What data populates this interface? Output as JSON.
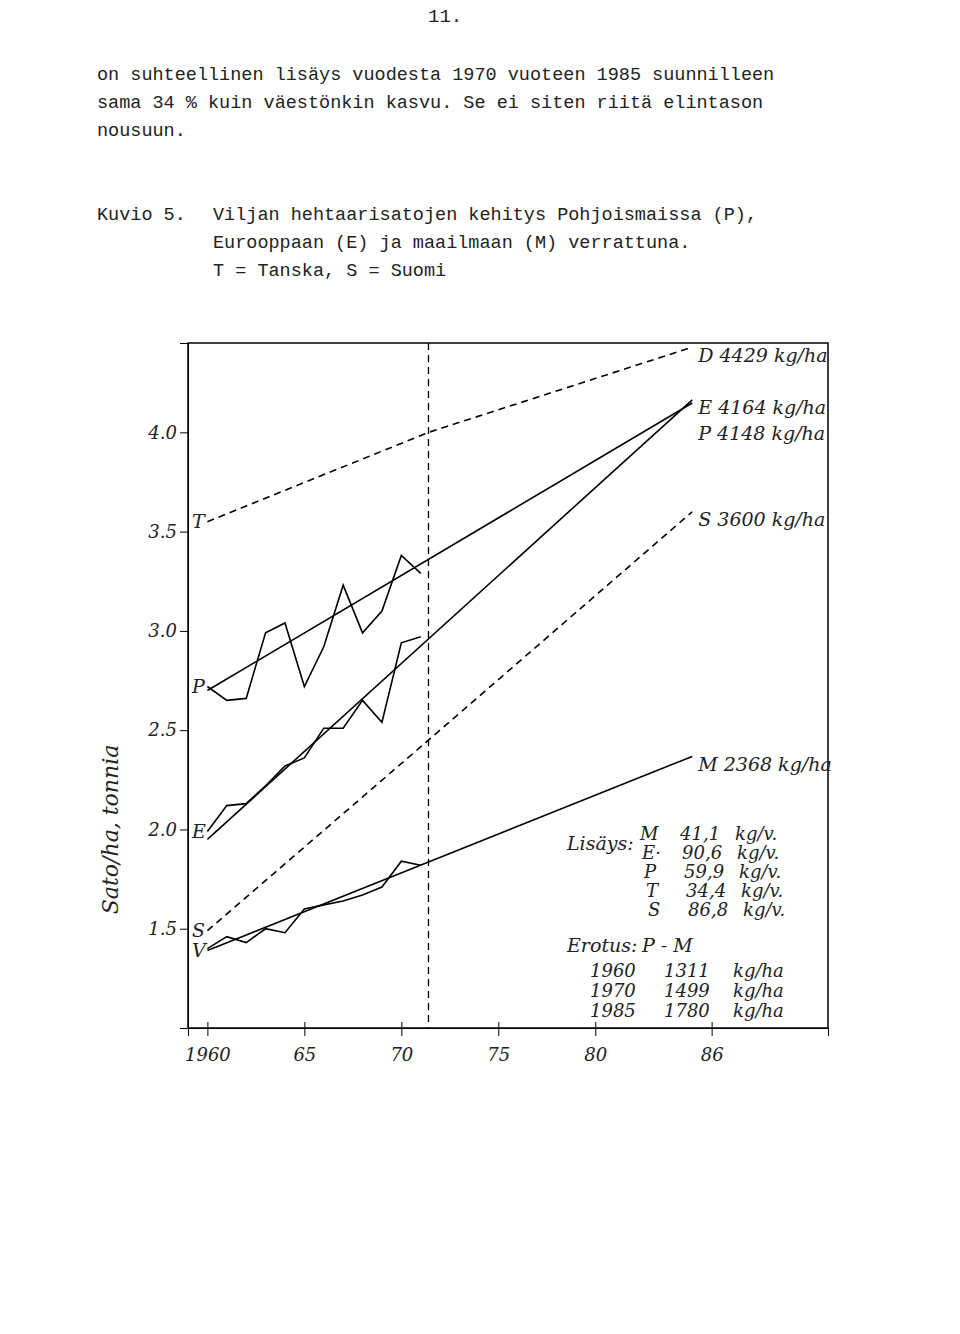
{
  "page": {
    "number": "11.",
    "paragraph": [
      "on suhteellinen lisäys vuodesta 1970 vuoteen 1985 suunnilleen",
      "sama 34 % kuin väestönkin kasvu. Se ei siten riitä elintason",
      "nousuun."
    ],
    "caption_label": "Kuvio 5.",
    "caption": [
      "Viljan hehtaarisatojen kehitys Pohjoismaissa (P),",
      "Eurooppaan (E) ja maailmaan (M) verrattuna.",
      "T = Tanska, S = Suomi"
    ]
  },
  "chart_data": {
    "type": "line",
    "y_label": "Sato/ha, tonnia",
    "xlim": [
      1959,
      1992
    ],
    "ylim": [
      1.0,
      4.45
    ],
    "xticks": [
      1960,
      {
        "value": 1965,
        "label": "65"
      },
      {
        "value": 1970,
        "label": "70"
      },
      {
        "value": 1975,
        "label": "75"
      },
      {
        "value": 1980,
        "label": "80"
      },
      {
        "value": 1986,
        "label": "86"
      }
    ],
    "yticks": [
      {
        "value": 1.5,
        "label": "1.5"
      },
      {
        "value": 2,
        "label": "2.0"
      },
      {
        "value": 2.5,
        "label": "2.5"
      },
      {
        "value": 3,
        "label": "3.0"
      },
      {
        "value": 3.5,
        "label": "3.5"
      },
      {
        "value": 4,
        "label": "4.0"
      }
    ],
    "grid": false,
    "reference_x": 1971.4,
    "series": [
      {
        "name": "P",
        "color": "#000000",
        "line_style": "solid",
        "x": [
          1960,
          1961,
          1962,
          1963,
          1964,
          1965,
          1966,
          1967,
          1968,
          1969,
          1970,
          1971
        ],
        "values": [
          2.72,
          2.65,
          2.66,
          2.99,
          3.04,
          2.72,
          2.92,
          3.23,
          2.99,
          3.1,
          3.38,
          3.29
        ]
      },
      {
        "color": "#000000",
        "line_style": "solid",
        "label": "P 4148 kg/ha",
        "x": [
          1960,
          1985
        ],
        "values": [
          2.7,
          4.148
        ]
      },
      {
        "name": "E",
        "color": "#000000",
        "line_style": "solid",
        "x": [
          1960,
          1961,
          1962,
          1963,
          1964,
          1965,
          1966,
          1967,
          1968,
          1969,
          1970,
          1971
        ],
        "values": [
          1.99,
          2.12,
          2.13,
          2.22,
          2.32,
          2.36,
          2.51,
          2.51,
          2.65,
          2.54,
          2.94,
          2.97
        ]
      },
      {
        "color": "#000000",
        "line_style": "solid",
        "label": "E 4164 kg/ha",
        "x": [
          1960,
          1985
        ],
        "values": [
          1.95,
          4.164
        ]
      },
      {
        "name": "V",
        "color": "#000000",
        "line_style": "solid",
        "x": [
          1960,
          1961,
          1962,
          1963,
          1964,
          1965,
          1966,
          1967,
          1968,
          1969,
          1970,
          1971
        ],
        "values": [
          1.4,
          1.46,
          1.43,
          1.5,
          1.48,
          1.6,
          1.62,
          1.64,
          1.67,
          1.71,
          1.84,
          1.82
        ]
      },
      {
        "color": "#000000",
        "line_style": "solid",
        "label": "M 2368 kg/ha",
        "x": [
          1960,
          1985
        ],
        "values": [
          1.39,
          2.368
        ]
      },
      {
        "name": "T",
        "color": "#000000",
        "line_style": "dashed",
        "label": "D 4429 kg/ha",
        "x": [
          1960,
          1971.4,
          1985
        ],
        "values": [
          3.55,
          4.0,
          4.429
        ]
      },
      {
        "name": "S",
        "color": "#000000",
        "line_style": "dashed",
        "label": "S 3600 kg/ha",
        "x": [
          1960,
          1971.4,
          1985
        ],
        "values": [
          1.49,
          2.45,
          3.6
        ]
      }
    ],
    "annotations": {
      "lisays": {
        "title": "Lisäys:",
        "rows": [
          [
            "M",
            "41,1",
            "kg/v."
          ],
          [
            "E·",
            "90,6",
            "kg/v."
          ],
          [
            "P",
            "59,9",
            "kg/v."
          ],
          [
            "T",
            "34,4",
            "kg/v."
          ],
          [
            "S",
            "86,8",
            "kg/v."
          ]
        ]
      },
      "erotus": {
        "title": "Erotus:",
        "header": "P - M",
        "rows": [
          [
            "1960",
            "1311",
            "kg/ha"
          ],
          [
            "1970",
            "1499",
            "kg/ha"
          ],
          [
            "1985",
            "1780",
            "kg/ha"
          ]
        ]
      }
    }
  }
}
